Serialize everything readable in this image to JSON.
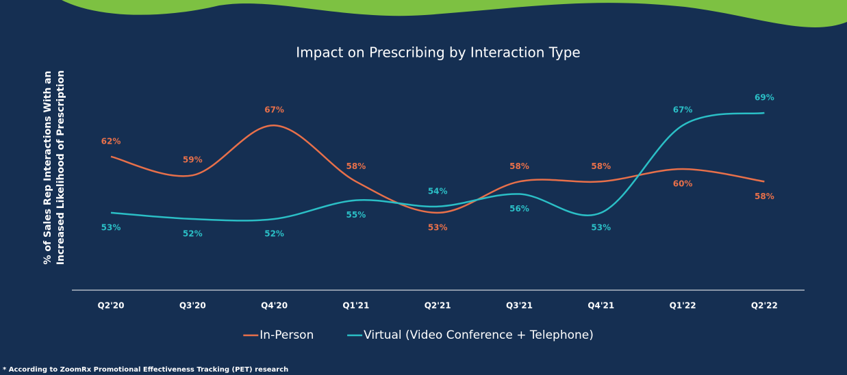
{
  "chart_data": {
    "type": "line",
    "title": "Impact on Prescribing by Interaction Type",
    "y_label": [
      "% of Sales Rep Interactions With an",
      "Increased Likelihood of Prescription"
    ],
    "categories": [
      "Q2'20",
      "Q3'20",
      "Q4'20",
      "Q1'21",
      "Q2'21",
      "Q3'21",
      "Q4'21",
      "Q1'22",
      "Q2'22"
    ],
    "series": [
      {
        "name": "In-Person",
        "color": "#e8704a",
        "values": [
          62,
          59,
          67,
          58,
          53,
          58,
          58,
          60,
          58
        ],
        "value_labels": [
          "62%",
          "59%",
          "67%",
          "58%",
          "53%",
          "58%",
          "58%",
          "60%",
          "58%"
        ]
      },
      {
        "name": "Virtual (Video Conference + Telephone)",
        "color": "#2bbfc6",
        "values": [
          53,
          52,
          52,
          55,
          54,
          56,
          53,
          67,
          69
        ],
        "value_labels": [
          "53%",
          "52%",
          "52%",
          "55%",
          "54%",
          "56%",
          "53%",
          "67%",
          "69%"
        ]
      }
    ],
    "footnote": "* According to ZoomRx Promotional Effectiveness Tracking (PET) research"
  }
}
